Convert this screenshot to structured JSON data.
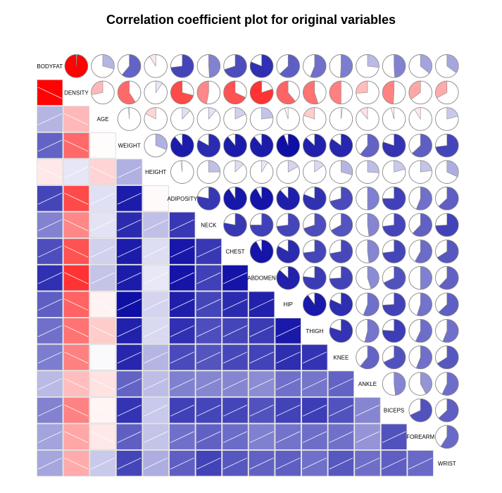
{
  "chart_data": {
    "type": "heatmap",
    "subtype": "corrgram",
    "title": "Correlation coefficient plot for original variables",
    "lower_panel": "shade",
    "upper_panel": "pie",
    "variables": [
      "BODYFAT",
      "DENSITY",
      "AGE",
      "WEIGHT",
      "HEIGHT",
      "ADIPOSITY",
      "NECK",
      "CHEST",
      "ABDOMEN",
      "HIP",
      "THIGH",
      "KNEE",
      "ANKLE",
      "BICEPS",
      "FOREARM",
      "WRIST"
    ],
    "correlations": [
      [
        1.0,
        -0.99,
        0.29,
        0.61,
        -0.09,
        0.73,
        0.49,
        0.7,
        0.81,
        0.63,
        0.56,
        0.51,
        0.27,
        0.49,
        0.36,
        0.35
      ],
      [
        -0.99,
        1.0,
        -0.28,
        -0.59,
        0.1,
        -0.71,
        -0.47,
        -0.68,
        -0.8,
        -0.61,
        -0.55,
        -0.5,
        -0.26,
        -0.49,
        -0.35,
        -0.33
      ],
      [
        0.29,
        -0.28,
        1.0,
        -0.01,
        -0.17,
        0.12,
        0.11,
        0.18,
        0.23,
        -0.05,
        -0.2,
        0.02,
        -0.11,
        -0.04,
        -0.09,
        0.21
      ],
      [
        0.61,
        -0.59,
        -0.01,
        1.0,
        0.31,
        0.89,
        0.83,
        0.89,
        0.89,
        0.94,
        0.87,
        0.85,
        0.61,
        0.8,
        0.63,
        0.73
      ],
      [
        -0.09,
        0.1,
        -0.17,
        0.31,
        1.0,
        -0.02,
        0.25,
        0.13,
        0.09,
        0.17,
        0.15,
        0.29,
        0.26,
        0.21,
        0.23,
        0.32
      ],
      [
        0.73,
        -0.71,
        0.12,
        0.89,
        -0.02,
        1.0,
        0.78,
        0.91,
        0.92,
        0.88,
        0.81,
        0.71,
        0.5,
        0.75,
        0.56,
        0.63
      ],
      [
        0.49,
        -0.47,
        0.11,
        0.83,
        0.25,
        0.78,
        1.0,
        0.78,
        0.75,
        0.73,
        0.7,
        0.67,
        0.48,
        0.73,
        0.62,
        0.74
      ],
      [
        0.7,
        -0.68,
        0.18,
        0.89,
        0.13,
        0.91,
        0.78,
        1.0,
        0.92,
        0.83,
        0.73,
        0.72,
        0.48,
        0.73,
        0.58,
        0.66
      ],
      [
        0.81,
        -0.8,
        0.23,
        0.89,
        0.09,
        0.92,
        0.75,
        0.92,
        1.0,
        0.87,
        0.77,
        0.74,
        0.45,
        0.68,
        0.5,
        0.62
      ],
      [
        0.63,
        -0.61,
        -0.05,
        0.94,
        0.17,
        0.88,
        0.73,
        0.83,
        0.87,
        1.0,
        0.9,
        0.82,
        0.56,
        0.74,
        0.55,
        0.63
      ],
      [
        0.56,
        -0.55,
        -0.2,
        0.87,
        0.15,
        0.81,
        0.7,
        0.73,
        0.77,
        0.9,
        1.0,
        0.8,
        0.54,
        0.76,
        0.57,
        0.56
      ],
      [
        0.51,
        -0.5,
        0.02,
        0.85,
        0.29,
        0.71,
        0.67,
        0.72,
        0.74,
        0.82,
        0.8,
        1.0,
        0.61,
        0.68,
        0.56,
        0.66
      ],
      [
        0.27,
        -0.26,
        -0.11,
        0.61,
        0.26,
        0.5,
        0.48,
        0.48,
        0.45,
        0.56,
        0.54,
        0.61,
        1.0,
        0.48,
        0.42,
        0.57
      ],
      [
        0.49,
        -0.49,
        -0.04,
        0.8,
        0.21,
        0.75,
        0.73,
        0.73,
        0.68,
        0.74,
        0.76,
        0.68,
        0.48,
        1.0,
        0.68,
        0.63
      ],
      [
        0.36,
        -0.35,
        -0.09,
        0.63,
        0.23,
        0.56,
        0.62,
        0.58,
        0.5,
        0.55,
        0.57,
        0.56,
        0.42,
        0.68,
        1.0,
        0.59
      ],
      [
        0.35,
        -0.33,
        0.21,
        0.73,
        0.32,
        0.63,
        0.74,
        0.66,
        0.62,
        0.63,
        0.56,
        0.66,
        0.57,
        0.63,
        0.59,
        1.0
      ]
    ],
    "colors": {
      "negative_strong": "#FF0000",
      "positive_strong": "#0000A0",
      "neutral": "#FFFFFF",
      "pie_outline": "#888888",
      "grid_border": "#D8D8D8",
      "stripe": "#FFFFFF"
    }
  }
}
